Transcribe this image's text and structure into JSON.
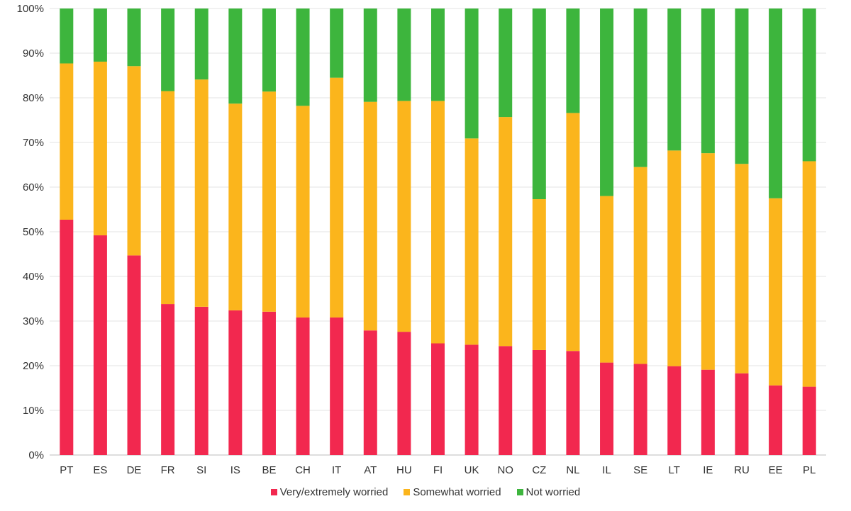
{
  "chart_data": {
    "type": "bar",
    "stacked": true,
    "categories": [
      "PT",
      "ES",
      "DE",
      "FR",
      "SI",
      "IS",
      "BE",
      "CH",
      "IT",
      "AT",
      "HU",
      "FI",
      "UK",
      "NO",
      "CZ",
      "NL",
      "IL",
      "SE",
      "LT",
      "IE",
      "RU",
      "EE",
      "PL"
    ],
    "series": [
      {
        "name": "Very/extremely worried",
        "color": "#f2284f",
        "values": [
          52.7,
          49.2,
          44.7,
          33.8,
          33.2,
          32.4,
          32.1,
          30.8,
          30.8,
          27.9,
          27.6,
          25.0,
          24.7,
          24.4,
          23.5,
          23.3,
          20.7,
          20.4,
          19.9,
          19.1,
          18.3,
          15.6,
          15.3
        ]
      },
      {
        "name": "Somewhat worried",
        "color": "#fbb51c",
        "values": [
          35.0,
          38.9,
          42.4,
          47.7,
          50.9,
          46.3,
          49.3,
          47.4,
          53.7,
          51.2,
          51.7,
          54.3,
          46.2,
          51.3,
          33.8,
          53.3,
          37.3,
          44.1,
          48.3,
          48.5,
          46.9,
          41.9,
          50.5
        ]
      },
      {
        "name": "Not worried",
        "color": "#3db53d",
        "values": [
          12.3,
          11.9,
          12.9,
          18.5,
          15.9,
          21.3,
          18.6,
          21.8,
          15.5,
          20.9,
          20.7,
          20.7,
          29.1,
          24.3,
          42.7,
          23.4,
          42.0,
          35.5,
          31.8,
          32.4,
          34.8,
          42.5,
          34.2
        ]
      }
    ],
    "yticks": [
      "0%",
      "10%",
      "20%",
      "30%",
      "40%",
      "50%",
      "60%",
      "70%",
      "80%",
      "90%",
      "100%"
    ],
    "ylim": [
      0,
      100
    ],
    "grid": true,
    "legend_position": "bottom"
  }
}
